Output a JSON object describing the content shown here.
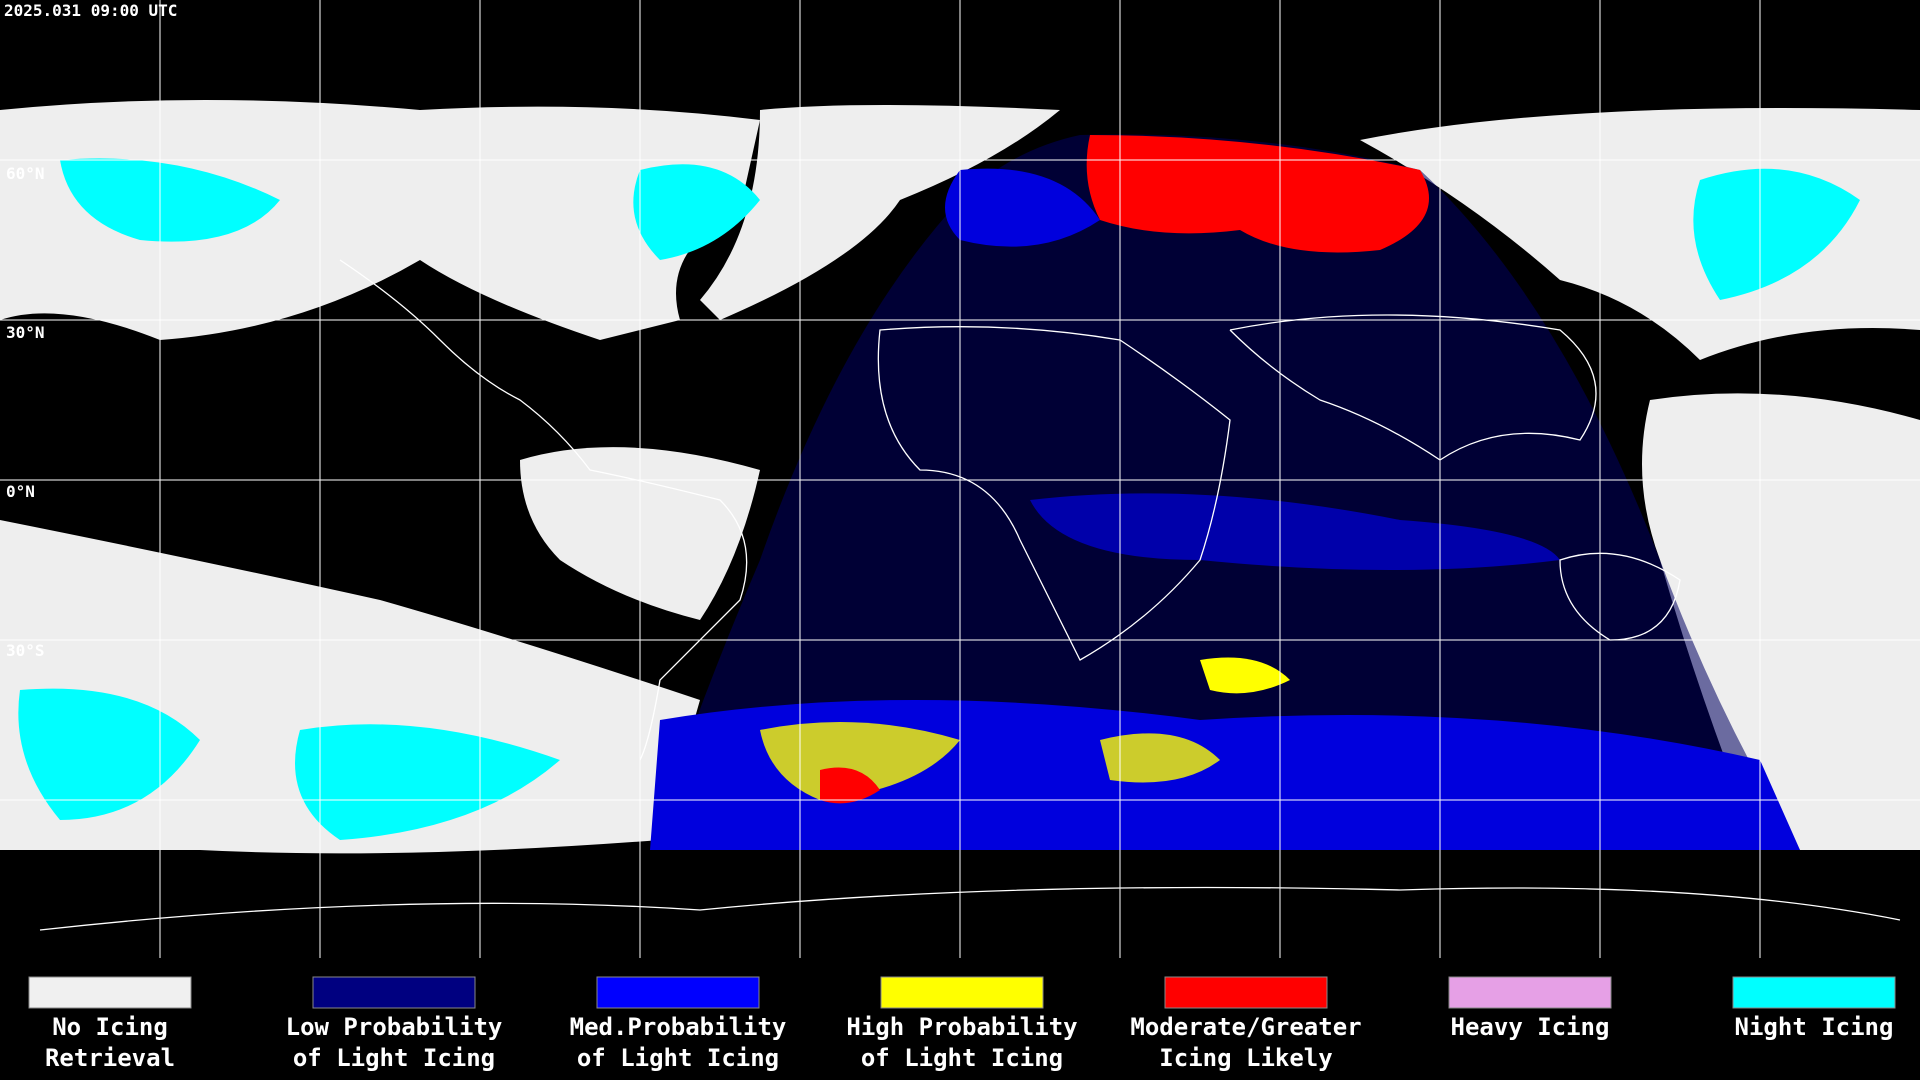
{
  "header": {
    "timestamp": "2025.031 09:00 UTC"
  },
  "map": {
    "lat_labels": [
      "60°N",
      "30°N",
      "0°N",
      "30°S"
    ]
  },
  "legend": {
    "items": [
      {
        "lines": [
          "No Icing",
          "Retrieval"
        ],
        "color": "#f0f0f0"
      },
      {
        "lines": [
          "Low Probability",
          "of Light Icing"
        ],
        "color": "#000080"
      },
      {
        "lines": [
          "Med.Probability",
          "of Light Icing"
        ],
        "color": "#0000ff"
      },
      {
        "lines": [
          "High Probability",
          "of Light Icing"
        ],
        "color": "#ffff00"
      },
      {
        "lines": [
          "Moderate/Greater",
          "Icing Likely"
        ],
        "color": "#ff0000"
      },
      {
        "lines": [
          "Heavy Icing"
        ],
        "color": "#e6a0e6"
      },
      {
        "lines": [
          "Night Icing"
        ],
        "color": "#00ffff"
      }
    ]
  }
}
